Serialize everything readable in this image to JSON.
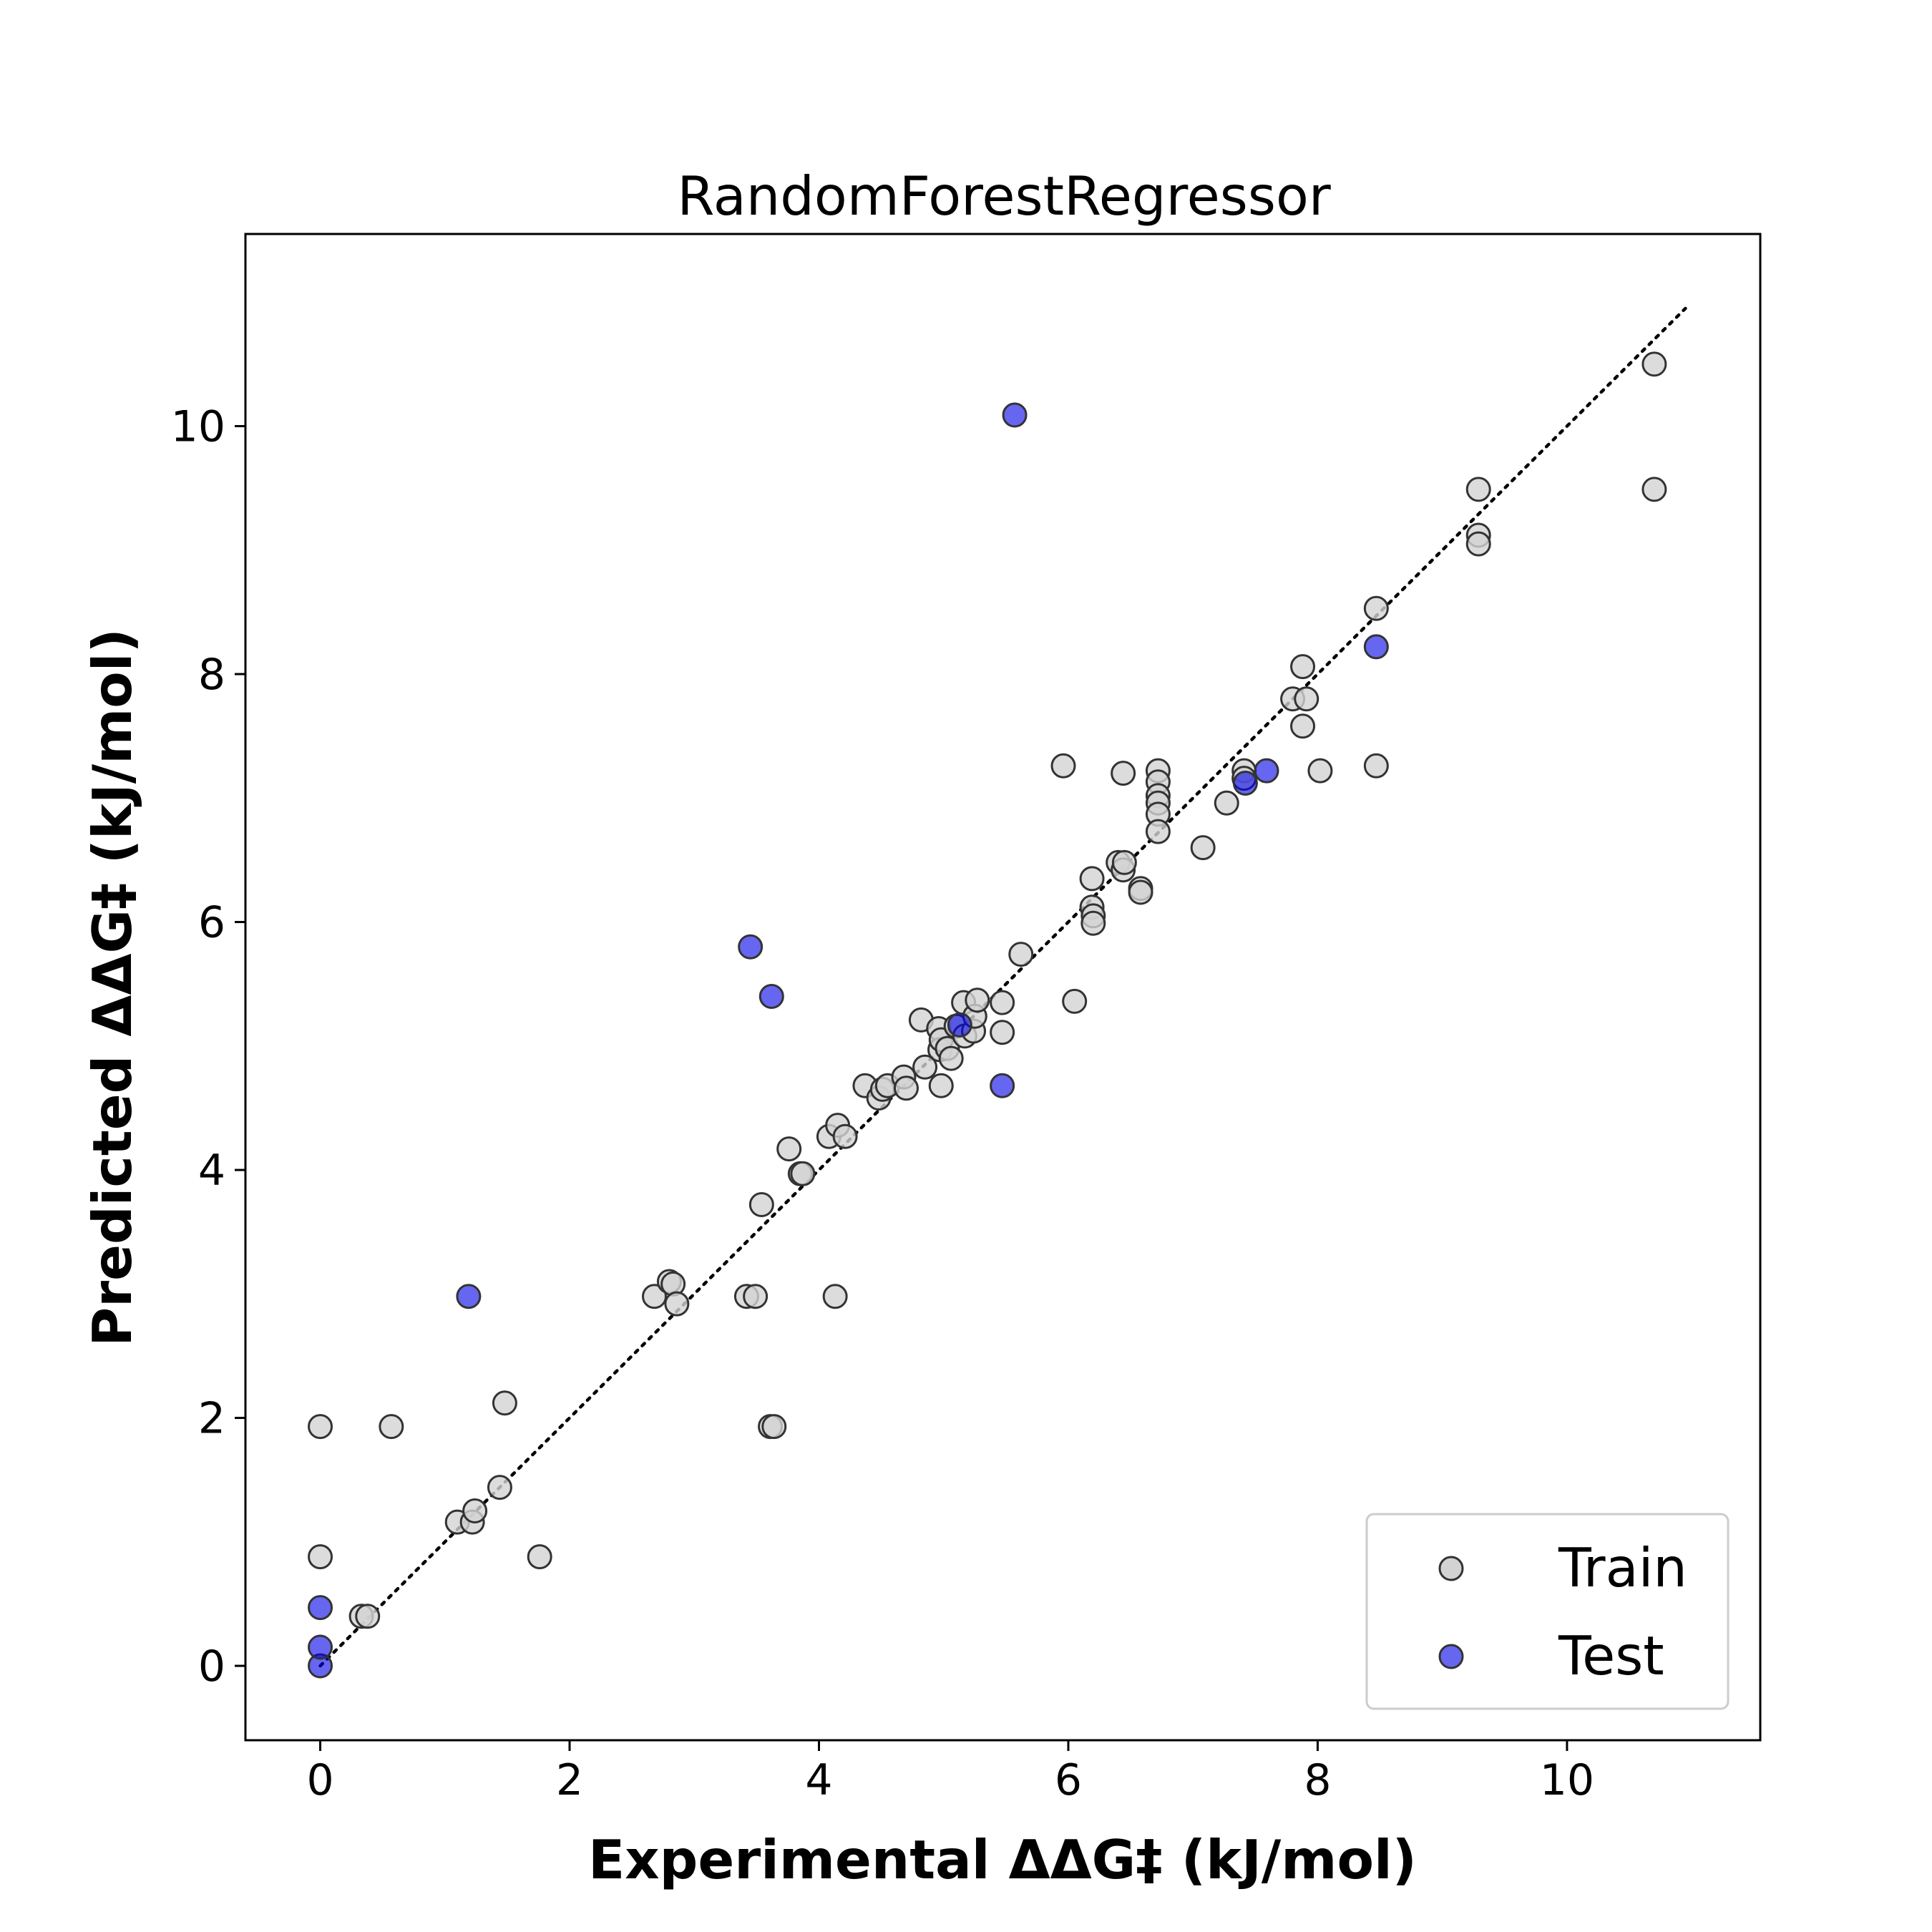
{
  "chart_data": {
    "type": "scatter",
    "title": "RandomForestRegressor",
    "xlabel": "Experimental ΔΔG‡ (kJ/mol)",
    "ylabel": "Predicted ΔΔG‡ (kJ/mol)",
    "xlim": [
      -0.6,
      11.55
    ],
    "ylim": [
      -0.6,
      11.55
    ],
    "x_ticks": [
      "0",
      "2",
      "4",
      "6",
      "8",
      "10"
    ],
    "y_ticks": [
      "0",
      "2",
      "4",
      "6",
      "8",
      "10"
    ],
    "reference_line": {
      "style": "dotted",
      "color": "#000000",
      "from": [
        0,
        0
      ],
      "to": [
        10.95,
        10.95
      ]
    },
    "legend": {
      "position": "lower-right"
    },
    "series": [
      {
        "name": "Train",
        "color": "#d3d3d3",
        "points": [
          [
            0.0,
            1.93
          ],
          [
            0.57,
            1.93
          ],
          [
            0.0,
            0.88
          ],
          [
            0.33,
            0.4
          ],
          [
            0.38,
            0.4
          ],
          [
            1.1,
            1.16
          ],
          [
            1.22,
            1.16
          ],
          [
            1.24,
            1.25
          ],
          [
            1.44,
            1.44
          ],
          [
            1.48,
            2.12
          ],
          [
            1.76,
            0.88
          ],
          [
            2.68,
            2.98
          ],
          [
            2.8,
            3.1
          ],
          [
            2.83,
            3.08
          ],
          [
            2.86,
            2.92
          ],
          [
            3.42,
            2.98
          ],
          [
            3.49,
            2.98
          ],
          [
            3.54,
            3.72
          ],
          [
            3.61,
            1.93
          ],
          [
            3.64,
            1.93
          ],
          [
            3.76,
            4.17
          ],
          [
            3.85,
            3.97
          ],
          [
            3.87,
            3.97
          ],
          [
            4.08,
            4.27
          ],
          [
            4.13,
            2.98
          ],
          [
            4.15,
            4.36
          ],
          [
            4.21,
            4.27
          ],
          [
            4.37,
            4.68
          ],
          [
            4.48,
            4.58
          ],
          [
            4.51,
            4.65
          ],
          [
            4.55,
            4.68
          ],
          [
            4.68,
            4.75
          ],
          [
            4.7,
            4.66
          ],
          [
            4.85,
            4.83
          ],
          [
            4.82,
            5.21
          ],
          [
            4.96,
            5.14
          ],
          [
            4.97,
            4.97
          ],
          [
            4.98,
            5.05
          ],
          [
            4.98,
            4.68
          ],
          [
            5.03,
            4.98
          ],
          [
            5.06,
            4.9
          ],
          [
            5.1,
            5.16
          ],
          [
            5.16,
            5.35
          ],
          [
            5.17,
            5.08
          ],
          [
            5.24,
            5.12
          ],
          [
            5.25,
            5.24
          ],
          [
            5.27,
            5.37
          ],
          [
            5.47,
            5.35
          ],
          [
            5.47,
            5.11
          ],
          [
            5.62,
            5.74
          ],
          [
            5.96,
            7.26
          ],
          [
            6.05,
            5.36
          ],
          [
            6.19,
            6.35
          ],
          [
            6.19,
            6.12
          ],
          [
            6.2,
            6.05
          ],
          [
            6.2,
            5.99
          ],
          [
            6.4,
            6.48
          ],
          [
            6.44,
            6.42
          ],
          [
            6.45,
            6.48
          ],
          [
            6.44,
            7.2
          ],
          [
            6.58,
            6.27
          ],
          [
            6.58,
            6.24
          ],
          [
            6.72,
            7.22
          ],
          [
            6.72,
            7.13
          ],
          [
            6.72,
            7.02
          ],
          [
            6.72,
            6.96
          ],
          [
            6.72,
            6.87
          ],
          [
            6.72,
            6.73
          ],
          [
            7.08,
            6.6
          ],
          [
            7.27,
            6.96
          ],
          [
            7.41,
            7.22
          ],
          [
            7.41,
            7.16
          ],
          [
            7.8,
            7.8
          ],
          [
            7.88,
            8.06
          ],
          [
            7.88,
            7.58
          ],
          [
            7.91,
            7.8
          ],
          [
            8.02,
            7.22
          ],
          [
            8.47,
            8.53
          ],
          [
            8.47,
            7.26
          ],
          [
            9.29,
            9.49
          ],
          [
            9.29,
            9.12
          ],
          [
            9.29,
            9.05
          ],
          [
            10.7,
            10.5
          ],
          [
            10.7,
            9.49
          ]
        ]
      },
      {
        "name": "Test",
        "color": "#0000e6",
        "points": [
          [
            0.0,
            0.0
          ],
          [
            0.0,
            0.15
          ],
          [
            0.0,
            0.47
          ],
          [
            1.19,
            2.98
          ],
          [
            3.45,
            5.8
          ],
          [
            3.62,
            5.4
          ],
          [
            5.13,
            5.17
          ],
          [
            5.47,
            4.68
          ],
          [
            5.57,
            10.09
          ],
          [
            7.42,
            7.12
          ],
          [
            7.59,
            7.22
          ],
          [
            8.47,
            8.22
          ]
        ]
      }
    ]
  }
}
